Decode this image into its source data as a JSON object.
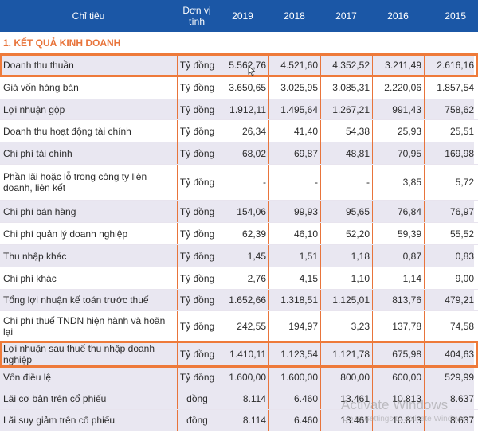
{
  "header": {
    "col_name": "Chỉ tiêu",
    "col_unit": "Đơn vị tính",
    "years": [
      "2019",
      "2018",
      "2017",
      "2016",
      "2015"
    ]
  },
  "section_title": "1. KẾT QUẢ KINH DOANH",
  "rows": [
    {
      "name": "Doanh thu thuần",
      "unit": "Tỷ đồng",
      "values": [
        "5.562,76",
        "4.521,60",
        "4.352,52",
        "3.211,49",
        "2.616,16"
      ]
    },
    {
      "name": "Giá vốn hàng bán",
      "unit": "Tỷ đồng",
      "values": [
        "3.650,65",
        "3.025,95",
        "3.085,31",
        "2.220,06",
        "1.857,54"
      ]
    },
    {
      "name": "Lợi nhuận gộp",
      "unit": "Tỷ đồng",
      "values": [
        "1.912,11",
        "1.495,64",
        "1.267,21",
        "991,43",
        "758,62"
      ]
    },
    {
      "name": "Doanh thu hoạt động tài chính",
      "unit": "Tỷ đồng",
      "values": [
        "26,34",
        "41,40",
        "54,38",
        "25,93",
        "25,51"
      ]
    },
    {
      "name": "Chi phí tài chính",
      "unit": "Tỷ đồng",
      "values": [
        "68,02",
        "69,87",
        "48,81",
        "70,95",
        "169,98"
      ]
    },
    {
      "name": "Phần lãi hoặc lỗ trong công ty liên doanh, liên kết",
      "unit": "Tỷ đồng",
      "values": [
        "-",
        "-",
        "-",
        "3,85",
        "5,72"
      ]
    },
    {
      "name": "Chi phí bán hàng",
      "unit": "Tỷ đồng",
      "values": [
        "154,06",
        "99,93",
        "95,65",
        "76,84",
        "76,97"
      ]
    },
    {
      "name": "Chi phí quản lý doanh nghiệp",
      "unit": "Tỷ đồng",
      "values": [
        "62,39",
        "46,10",
        "52,20",
        "59,39",
        "55,52"
      ]
    },
    {
      "name": "Thu nhập khác",
      "unit": "Tỷ đồng",
      "values": [
        "1,45",
        "1,51",
        "1,18",
        "0,87",
        "0,83"
      ]
    },
    {
      "name": "Chi phí khác",
      "unit": "Tỷ đồng",
      "values": [
        "2,76",
        "4,15",
        "1,10",
        "1,14",
        "9,00"
      ]
    },
    {
      "name": "Tổng lợi nhuận kế toán trước thuế",
      "unit": "Tỷ đồng",
      "values": [
        "1.652,66",
        "1.318,51",
        "1.125,01",
        "813,76",
        "479,21"
      ]
    },
    {
      "name": "Chi phí thuế TNDN hiện hành và hoãn lại",
      "unit": "Tỷ đồng",
      "values": [
        "242,55",
        "194,97",
        "3,23",
        "137,78",
        "74,58"
      ]
    },
    {
      "name": "Lợi nhuận sau thuế thu nhập doanh nghiệp",
      "unit": "Tỷ đồng",
      "values": [
        "1.410,11",
        "1.123,54",
        "1.121,78",
        "675,98",
        "404,63"
      ]
    },
    {
      "name": "Vốn điều lệ",
      "unit": "Tỷ đồng",
      "values": [
        "1.600,00",
        "1.600,00",
        "800,00",
        "600,00",
        "529,99"
      ]
    },
    {
      "name": "Lãi cơ bản trên cổ phiếu",
      "unit": "đồng",
      "values": [
        "8.114",
        "6.460",
        "13.461",
        "10.813",
        "8.637"
      ]
    },
    {
      "name": "Lãi suy giảm trên cổ phiếu",
      "unit": "đồng",
      "values": [
        "8.114",
        "6.460",
        "13.461",
        "10.813",
        "8.637"
      ]
    }
  ],
  "watermark": {
    "title": "Activate Windows",
    "subtitle": "Go to Settings to activate Windows."
  },
  "colors": {
    "header_bg": "#1b57a6",
    "accent": "#ee7a3a",
    "row_shade": "#e9e7f1"
  },
  "icons": [
    "mouse-cursor-icon"
  ]
}
